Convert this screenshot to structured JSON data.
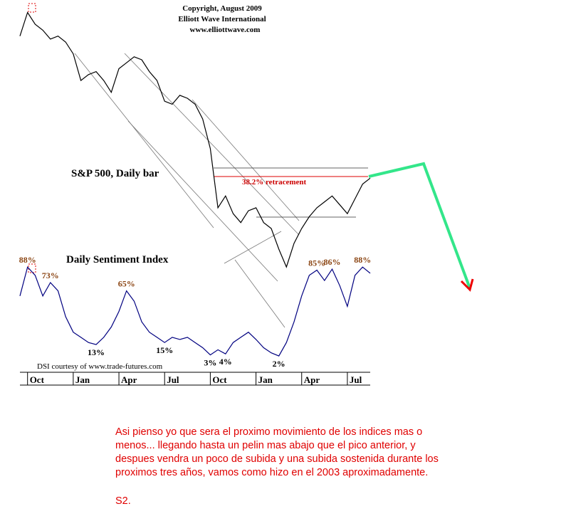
{
  "header": [
    "Copyright, August 2009",
    "Elliott Wave International",
    "www.elliottwave.com"
  ],
  "chart_data": {
    "type": "line",
    "categories": [
      null,
      "Oct",
      null,
      null,
      null,
      null,
      null,
      "Jan",
      null,
      null,
      null,
      null,
      null,
      "Apr",
      null,
      null,
      null,
      null,
      null,
      "Jul",
      null,
      null,
      null,
      null,
      null,
      "Oct",
      null,
      null,
      null,
      null,
      null,
      "Jan",
      null,
      null,
      null,
      null,
      null,
      "Apr",
      null,
      null,
      null,
      null,
      null,
      "Jul",
      null,
      null,
      null
    ],
    "series": [
      {
        "name": "S&P 500, Daily bar",
        "color": "#000000",
        "values": [
          1480,
          1560,
          1520,
          1500,
          1470,
          1480,
          1460,
          1420,
          1330,
          1350,
          1360,
          1330,
          1290,
          1370,
          1390,
          1410,
          1400,
          1360,
          1330,
          1260,
          1250,
          1280,
          1270,
          1250,
          1200,
          1100,
          900,
          940,
          880,
          850,
          890,
          900,
          850,
          830,
          760,
          700,
          780,
          830,
          870,
          900,
          920,
          940,
          910,
          880,
          930,
          980,
          1000
        ]
      },
      {
        "name": "Daily Sentiment Index",
        "color": "#000080",
        "axis": "y2",
        "values": [
          60,
          88,
          80,
          60,
          73,
          65,
          40,
          25,
          20,
          15,
          13,
          20,
          30,
          45,
          65,
          55,
          35,
          25,
          20,
          15,
          20,
          18,
          20,
          15,
          10,
          3,
          8,
          4,
          15,
          20,
          25,
          18,
          10,
          5,
          2,
          15,
          35,
          60,
          80,
          85,
          75,
          86,
          70,
          50,
          80,
          88,
          82
        ],
        "value_labels": [
          null,
          "88%",
          null,
          null,
          "73%",
          null,
          null,
          null,
          null,
          null,
          "13%",
          null,
          null,
          null,
          "65%",
          null,
          null,
          null,
          null,
          "15%",
          null,
          null,
          null,
          null,
          null,
          "3%",
          null,
          "4%",
          null,
          null,
          null,
          null,
          null,
          null,
          "2%",
          null,
          null,
          null,
          null,
          "85%",
          null,
          "86%",
          null,
          null,
          null,
          "88%",
          null
        ]
      }
    ],
    "ylim": [
      640,
      1590
    ],
    "y2lim": [
      0,
      95
    ],
    "annotations": [
      "38.2% retracement",
      "DSI courtesy of  www.trade-futures.com"
    ]
  },
  "note": [
    "Asi pienso yo que sera el proximo movimiento de los indices mas o",
    "menos... llegando hasta un pelin mas abajo que el pico anterior, y",
    "despues vendra un poco de subida y una subida sostenida durante los",
    "proximos tres años, vamos como hizo en el 2003 aproximadamente."
  ],
  "signature": "S2."
}
